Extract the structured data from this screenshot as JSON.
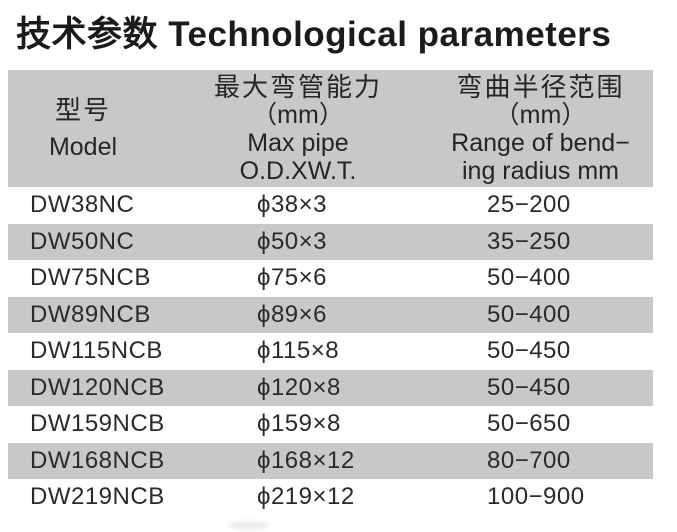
{
  "page_title": "技术参数 Technological parameters",
  "table": {
    "header": {
      "model": {
        "zh": "型号",
        "en": "Model"
      },
      "max_pipe": {
        "zh": "最大弯管能力",
        "unit": "（mm）",
        "en1": "Max pipe",
        "en2": "O.D.XW.T."
      },
      "bending_radius": {
        "zh": "弯曲半径范围",
        "unit": "（mm）",
        "en1": "Range of bend−",
        "en2": "ing radius mm"
      }
    },
    "rows": [
      {
        "model": "DW38NC",
        "max_pipe": "ϕ38×3",
        "bending_radius": "25−200"
      },
      {
        "model": "DW50NC",
        "max_pipe": "ϕ50×3",
        "bending_radius": "35−250"
      },
      {
        "model": "DW75NCB",
        "max_pipe": "ϕ75×6",
        "bending_radius": "50−400"
      },
      {
        "model": "DW89NCB",
        "max_pipe": "ϕ89×6",
        "bending_radius": "50−400"
      },
      {
        "model": "DW115NCB",
        "max_pipe": "ϕ115×8",
        "bending_radius": "50−450"
      },
      {
        "model": "DW120NCB",
        "max_pipe": "ϕ120×8",
        "bending_radius": "50−450"
      },
      {
        "model": "DW159NCB",
        "max_pipe": "ϕ159×8",
        "bending_radius": "50−650"
      },
      {
        "model": "DW168NCB",
        "max_pipe": "ϕ168×12",
        "bending_radius": "80−700"
      },
      {
        "model": "DW219NCB",
        "max_pipe": "ϕ219×12",
        "bending_radius": "100−900"
      }
    ]
  },
  "colors": {
    "stripe_bg": "#c8c8c8",
    "title_text": "#1b1b1b",
    "body_text": "#2a2a2a",
    "page_bg": "#ffffff"
  }
}
